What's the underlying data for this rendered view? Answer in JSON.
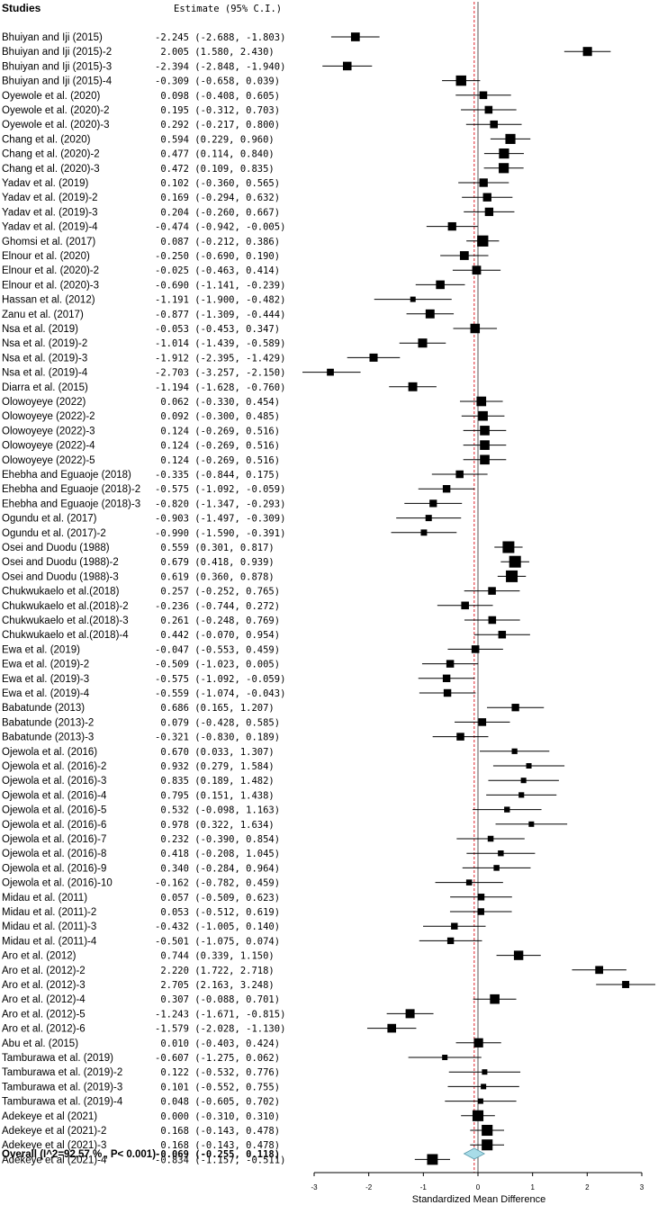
{
  "header": {
    "studies_label": "Studies",
    "estimate_label": "Estimate (95% C.I.)"
  },
  "chart_data": {
    "type": "forest",
    "xlabel": "Standardized Mean Difference",
    "xlim": [
      -3,
      3
    ],
    "xticks": [
      -3,
      -2,
      -1,
      0,
      1,
      2,
      3
    ],
    "reference_line": 0,
    "summary_line_color": "#e0202a",
    "diamond_color": "#a8dce8",
    "studies": [
      {
        "name": "Bhuiyan and Iji (2015)",
        "est": -2.245,
        "lo": -2.688,
        "hi": -1.803
      },
      {
        "name": "Bhuiyan and Iji (2015)-2",
        "est": 2.005,
        "lo": 1.58,
        "hi": 2.43
      },
      {
        "name": "Bhuiyan and Iji (2015)-3",
        "est": -2.394,
        "lo": -2.848,
        "hi": -1.94
      },
      {
        "name": "Bhuiyan and Iji (2015)-4",
        "est": -0.309,
        "lo": -0.658,
        "hi": 0.039
      },
      {
        "name": "Oyewole et al. (2020)",
        "est": 0.098,
        "lo": -0.408,
        "hi": 0.605
      },
      {
        "name": "Oyewole et al. (2020)-2",
        "est": 0.195,
        "lo": -0.312,
        "hi": 0.703
      },
      {
        "name": "Oyewole et al. (2020)-3",
        "est": 0.292,
        "lo": -0.217,
        "hi": 0.8
      },
      {
        "name": "Chang et al. (2020)",
        "est": 0.594,
        "lo": 0.229,
        "hi": 0.96
      },
      {
        "name": "Chang et al. (2020)-2",
        "est": 0.477,
        "lo": 0.114,
        "hi": 0.84
      },
      {
        "name": "Chang et al. (2020)-3",
        "est": 0.472,
        "lo": 0.109,
        "hi": 0.835
      },
      {
        "name": "Yadav et al. (2019)",
        "est": 0.102,
        "lo": -0.36,
        "hi": 0.565
      },
      {
        "name": "Yadav et al. (2019)-2",
        "est": 0.169,
        "lo": -0.294,
        "hi": 0.632
      },
      {
        "name": "Yadav et al. (2019)-3",
        "est": 0.204,
        "lo": -0.26,
        "hi": 0.667
      },
      {
        "name": "Yadav et al. (2019)-4",
        "est": -0.474,
        "lo": -0.942,
        "hi": -0.005
      },
      {
        "name": "Ghomsi et al. (2017)",
        "est": 0.087,
        "lo": -0.212,
        "hi": 0.386
      },
      {
        "name": "Elnour et al. (2020)",
        "est": -0.25,
        "lo": -0.69,
        "hi": 0.19
      },
      {
        "name": "Elnour et al. (2020)-2",
        "est": -0.025,
        "lo": -0.463,
        "hi": 0.414
      },
      {
        "name": "Elnour et al. (2020)-3",
        "est": -0.69,
        "lo": -1.141,
        "hi": -0.239
      },
      {
        "name": "Hassan et al. (2012)",
        "est": -1.191,
        "lo": -1.9,
        "hi": -0.482
      },
      {
        "name": "Zanu et al. (2017)",
        "est": -0.877,
        "lo": -1.309,
        "hi": -0.444
      },
      {
        "name": "Nsa et al. (2019)",
        "est": -0.053,
        "lo": -0.453,
        "hi": 0.347
      },
      {
        "name": "Nsa et al. (2019)-2",
        "est": -1.014,
        "lo": -1.439,
        "hi": -0.589
      },
      {
        "name": "Nsa et al. (2019)-3",
        "est": -1.912,
        "lo": -2.395,
        "hi": -1.429
      },
      {
        "name": "Nsa et al. (2019)-4",
        "est": -2.703,
        "lo": -3.257,
        "hi": -2.15
      },
      {
        "name": "Diarra et al. (2015)",
        "est": -1.194,
        "lo": -1.628,
        "hi": -0.76
      },
      {
        "name": "Olowoyeye (2022)",
        "est": 0.062,
        "lo": -0.33,
        "hi": 0.454
      },
      {
        "name": "Olowoyeye (2022)-2",
        "est": 0.092,
        "lo": -0.3,
        "hi": 0.485
      },
      {
        "name": "Olowoyeye (2022)-3",
        "est": 0.124,
        "lo": -0.269,
        "hi": 0.516
      },
      {
        "name": "Olowoyeye (2022)-4",
        "est": 0.124,
        "lo": -0.269,
        "hi": 0.516
      },
      {
        "name": "Olowoyeye (2022)-5",
        "est": 0.124,
        "lo": -0.269,
        "hi": 0.516
      },
      {
        "name": "Ehebha and Eguaoje (2018)",
        "est": -0.335,
        "lo": -0.844,
        "hi": 0.175
      },
      {
        "name": "Ehebha and Eguaoje (2018)-2",
        "est": -0.575,
        "lo": -1.092,
        "hi": -0.059
      },
      {
        "name": "Ehebha and Eguaoje (2018)-3",
        "est": -0.82,
        "lo": -1.347,
        "hi": -0.293
      },
      {
        "name": "Ogundu et al. (2017)",
        "est": -0.903,
        "lo": -1.497,
        "hi": -0.309
      },
      {
        "name": "Ogundu et al. (2017)-2",
        "est": -0.99,
        "lo": -1.59,
        "hi": -0.391
      },
      {
        "name": "Osei and Duodu (1988)",
        "est": 0.559,
        "lo": 0.301,
        "hi": 0.817
      },
      {
        "name": "Osei and Duodu (1988)-2",
        "est": 0.679,
        "lo": 0.418,
        "hi": 0.939
      },
      {
        "name": "Osei and Duodu (1988)-3",
        "est": 0.619,
        "lo": 0.36,
        "hi": 0.878
      },
      {
        "name": "Chukwukaelo et al.(2018)",
        "est": 0.257,
        "lo": -0.252,
        "hi": 0.765
      },
      {
        "name": "Chukwukaelo et al.(2018)-2",
        "est": -0.236,
        "lo": -0.744,
        "hi": 0.272
      },
      {
        "name": "Chukwukaelo et al.(2018)-3",
        "est": 0.261,
        "lo": -0.248,
        "hi": 0.769
      },
      {
        "name": "Chukwukaelo et al.(2018)-4",
        "est": 0.442,
        "lo": -0.07,
        "hi": 0.954
      },
      {
        "name": "Ewa et al. (2019)",
        "est": -0.047,
        "lo": -0.553,
        "hi": 0.459
      },
      {
        "name": "Ewa et al. (2019)-2",
        "est": -0.509,
        "lo": -1.023,
        "hi": 0.005
      },
      {
        "name": "Ewa et al. (2019)-3",
        "est": -0.575,
        "lo": -1.092,
        "hi": -0.059
      },
      {
        "name": "Ewa et al. (2019)-4",
        "est": -0.559,
        "lo": -1.074,
        "hi": -0.043
      },
      {
        "name": "Babatunde (2013)",
        "est": 0.686,
        "lo": 0.165,
        "hi": 1.207
      },
      {
        "name": "Babatunde (2013)-2",
        "est": 0.079,
        "lo": -0.428,
        "hi": 0.585
      },
      {
        "name": "Babatunde (2013)-3",
        "est": -0.321,
        "lo": -0.83,
        "hi": 0.189
      },
      {
        "name": "Ojewola et al. (2016)",
        "est": 0.67,
        "lo": 0.033,
        "hi": 1.307
      },
      {
        "name": "Ojewola et al. (2016)-2",
        "est": 0.932,
        "lo": 0.279,
        "hi": 1.584
      },
      {
        "name": "Ojewola et al. (2016)-3",
        "est": 0.835,
        "lo": 0.189,
        "hi": 1.482
      },
      {
        "name": "Ojewola et al. (2016)-4",
        "est": 0.795,
        "lo": 0.151,
        "hi": 1.438
      },
      {
        "name": "Ojewola et al. (2016)-5",
        "est": 0.532,
        "lo": -0.098,
        "hi": 1.163
      },
      {
        "name": "Ojewola et al. (2016)-6",
        "est": 0.978,
        "lo": 0.322,
        "hi": 1.634
      },
      {
        "name": "Ojewola et al. (2016)-7",
        "est": 0.232,
        "lo": -0.39,
        "hi": 0.854
      },
      {
        "name": "Ojewola et al. (2016)-8",
        "est": 0.418,
        "lo": -0.208,
        "hi": 1.045
      },
      {
        "name": "Ojewola et al. (2016)-9",
        "est": 0.34,
        "lo": -0.284,
        "hi": 0.964
      },
      {
        "name": "Ojewola et al. (2016)-10",
        "est": -0.162,
        "lo": -0.782,
        "hi": 0.459
      },
      {
        "name": "Midau et al. (2011)",
        "est": 0.057,
        "lo": -0.509,
        "hi": 0.623
      },
      {
        "name": "Midau et al. (2011)-2",
        "est": 0.053,
        "lo": -0.512,
        "hi": 0.619
      },
      {
        "name": "Midau et al. (2011)-3",
        "est": -0.432,
        "lo": -1.005,
        "hi": 0.14
      },
      {
        "name": "Midau et al. (2011)-4",
        "est": -0.501,
        "lo": -1.075,
        "hi": 0.074
      },
      {
        "name": "Aro et al. (2012)",
        "est": 0.744,
        "lo": 0.339,
        "hi": 1.15
      },
      {
        "name": "Aro et al. (2012)-2",
        "est": 2.22,
        "lo": 1.722,
        "hi": 2.718
      },
      {
        "name": "Aro et al. (2012)-3",
        "est": 2.705,
        "lo": 2.163,
        "hi": 3.248
      },
      {
        "name": "Aro et al. (2012)-4",
        "est": 0.307,
        "lo": -0.088,
        "hi": 0.701
      },
      {
        "name": "Aro et al. (2012)-5",
        "est": -1.243,
        "lo": -1.671,
        "hi": -0.815
      },
      {
        "name": "Aro et al. (2012)-6",
        "est": -1.579,
        "lo": -2.028,
        "hi": -1.13
      },
      {
        "name": "Abu et al. (2015)",
        "est": 0.01,
        "lo": -0.403,
        "hi": 0.424
      },
      {
        "name": "Tamburawa et al. (2019)",
        "est": -0.607,
        "lo": -1.275,
        "hi": 0.062
      },
      {
        "name": "Tamburawa et al. (2019)-2",
        "est": 0.122,
        "lo": -0.532,
        "hi": 0.776
      },
      {
        "name": "Tamburawa et al. (2019)-3",
        "est": 0.101,
        "lo": -0.552,
        "hi": 0.755
      },
      {
        "name": "Tamburawa et al. (2019)-4",
        "est": 0.048,
        "lo": -0.605,
        "hi": 0.702
      },
      {
        "name": "Adekeye et al (2021)",
        "est": 0.0,
        "lo": -0.31,
        "hi": 0.31
      },
      {
        "name": "Adekeye et al (2021)-2",
        "est": 0.168,
        "lo": -0.143,
        "hi": 0.478
      },
      {
        "name": "Adekeye et al (2021)-3",
        "est": 0.168,
        "lo": -0.143,
        "hi": 0.478
      },
      {
        "name": "Adekeye et al (2021)-4",
        "est": -0.834,
        "lo": -1.157,
        "hi": -0.511
      }
    ],
    "overall": {
      "name": "Overall (I^2=92.57 % , P< 0.001)",
      "est": -0.069,
      "lo": -0.255,
      "hi": 0.118
    }
  }
}
